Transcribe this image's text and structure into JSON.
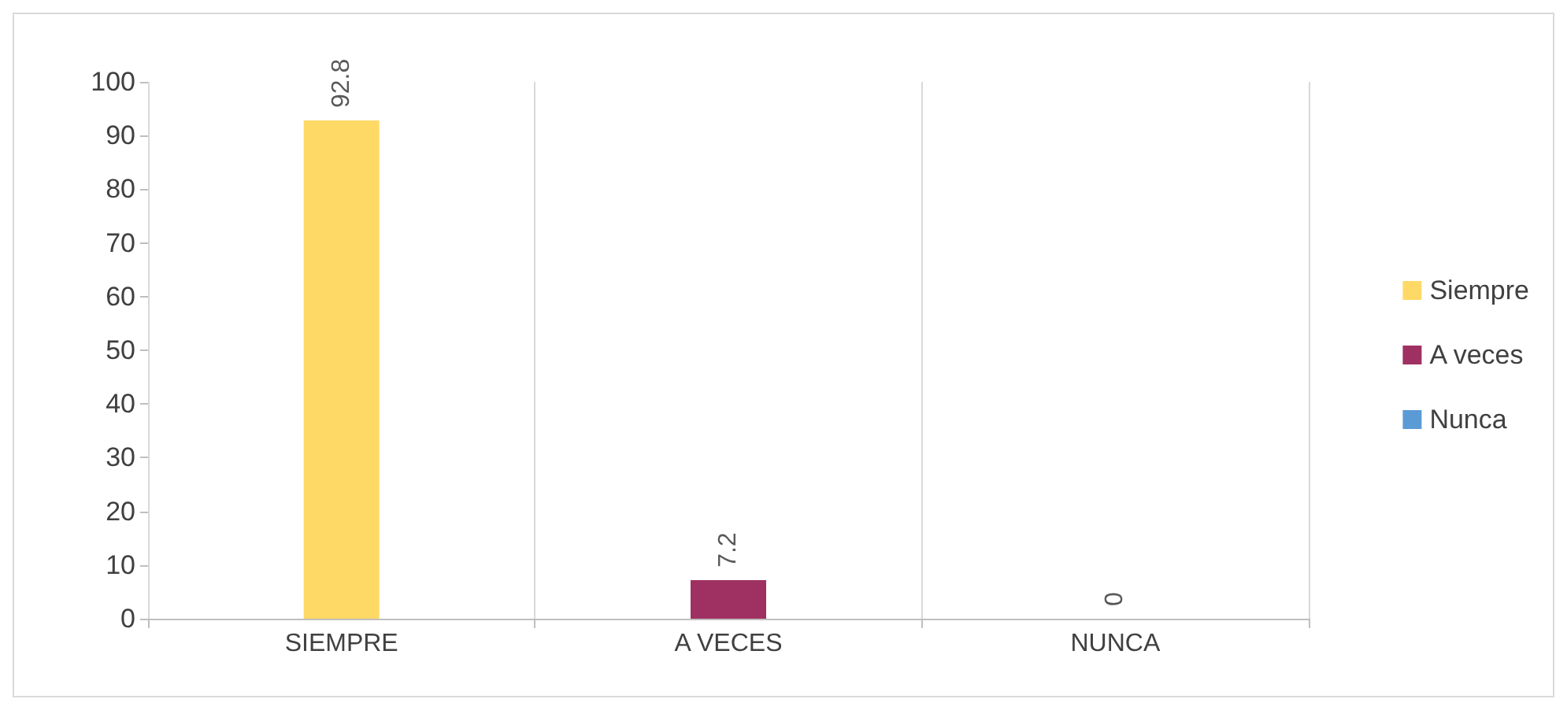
{
  "chart_data": {
    "type": "bar",
    "categories": [
      "SIEMPRE",
      "A VECES",
      "NUNCA"
    ],
    "series": [
      {
        "name": "Siempre",
        "color": "#ffd966",
        "values": [
          92.8,
          null,
          null
        ]
      },
      {
        "name": "A veces",
        "color": "#9e3162",
        "values": [
          null,
          7.2,
          null
        ]
      },
      {
        "name": "Nunca",
        "color": "#5b9bd5",
        "values": [
          null,
          null,
          0
        ]
      }
    ],
    "ylim": [
      0,
      100
    ],
    "yticks": [
      0,
      10,
      20,
      30,
      40,
      50,
      60,
      70,
      80,
      90,
      100
    ],
    "grid": "x",
    "legend": "right",
    "data_labels": true
  }
}
